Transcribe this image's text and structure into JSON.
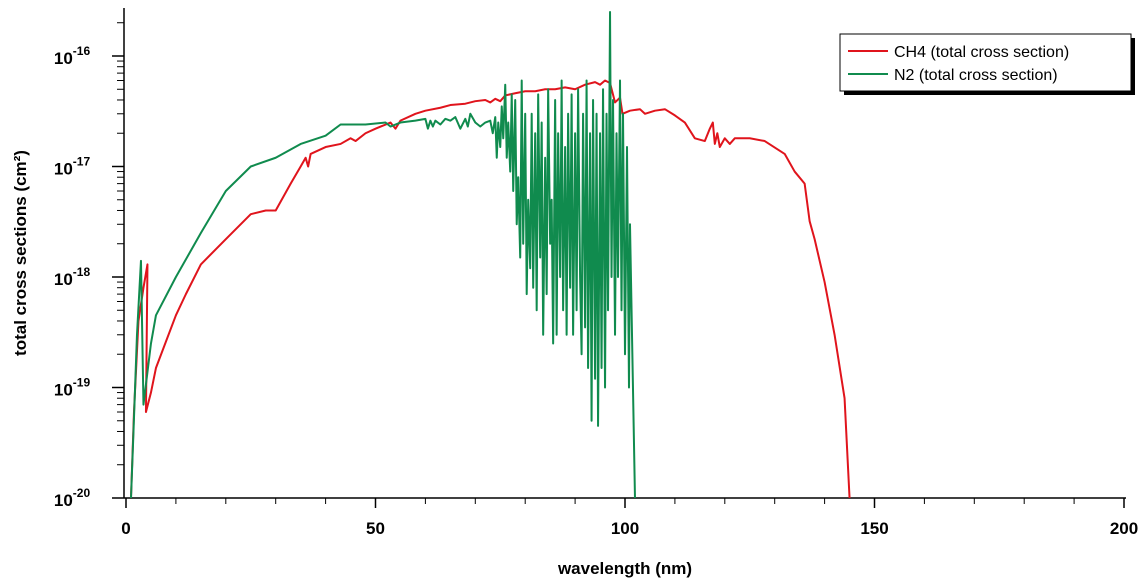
{
  "chart_data": {
    "type": "line",
    "xlabel": "wavelength (nm)",
    "ylabel": "total cross sections (cm²)",
    "xlim": [
      0,
      200
    ],
    "ylim": [
      1e-20,
      2.5e-16
    ],
    "yscale": "log",
    "x_ticks": [
      "0",
      "50",
      "100",
      "150",
      "200"
    ],
    "y_ticks": [
      {
        "base": "10",
        "exp": "-20",
        "value": 1e-20
      },
      {
        "base": "10",
        "exp": "-19",
        "value": 1e-19
      },
      {
        "base": "10",
        "exp": "-18",
        "value": 1e-18
      },
      {
        "base": "10",
        "exp": "-17",
        "value": 1e-17
      },
      {
        "base": "10",
        "exp": "-16",
        "value": 1e-16
      }
    ],
    "grid": false,
    "legend_position": "top-right",
    "series": [
      {
        "name": "CH4 (total cross section)",
        "color": "#e0141c",
        "points": [
          [
            1.0,
            1e-20
          ],
          [
            1.6,
            6e-20
          ],
          [
            2.5,
            4e-19
          ],
          [
            3.5,
            8e-19
          ],
          [
            4.3,
            1.3e-18
          ],
          [
            4.0,
            6e-20
          ],
          [
            5.0,
            9e-20
          ],
          [
            6.0,
            1.5e-19
          ],
          [
            8.0,
            2.6e-19
          ],
          [
            10.0,
            4.5e-19
          ],
          [
            12.0,
            7e-19
          ],
          [
            15.0,
            1.3e-18
          ],
          [
            20.0,
            2.2e-18
          ],
          [
            25.0,
            3.7e-18
          ],
          [
            28.0,
            4e-18
          ],
          [
            30.0,
            4e-18
          ],
          [
            33.0,
            7e-18
          ],
          [
            35.0,
            1e-17
          ],
          [
            36.0,
            1.2e-17
          ],
          [
            36.5,
            1e-17
          ],
          [
            37.0,
            1.3e-17
          ],
          [
            40.0,
            1.5e-17
          ],
          [
            43.0,
            1.6e-17
          ],
          [
            45.0,
            1.8e-17
          ],
          [
            46.0,
            1.7e-17
          ],
          [
            48.0,
            2e-17
          ],
          [
            50.0,
            2.2e-17
          ],
          [
            53.0,
            2.5e-17
          ],
          [
            54.0,
            2.2e-17
          ],
          [
            55.0,
            2.6e-17
          ],
          [
            58.0,
            3e-17
          ],
          [
            60.0,
            3.2e-17
          ],
          [
            63.0,
            3.4e-17
          ],
          [
            65.0,
            3.6e-17
          ],
          [
            68.0,
            3.7e-17
          ],
          [
            70.0,
            3.9e-17
          ],
          [
            72.0,
            4e-17
          ],
          [
            73.0,
            3.8e-17
          ],
          [
            74.0,
            4.1e-17
          ],
          [
            75.0,
            3.9e-17
          ],
          [
            76.0,
            4.4e-17
          ],
          [
            78.0,
            4.6e-17
          ],
          [
            80.0,
            4.8e-17
          ],
          [
            82.0,
            4.8e-17
          ],
          [
            84.0,
            5e-17
          ],
          [
            86.0,
            5e-17
          ],
          [
            88.0,
            5.2e-17
          ],
          [
            90.0,
            5e-17
          ],
          [
            92.0,
            5.5e-17
          ],
          [
            94.0,
            5.8e-17
          ],
          [
            95.0,
            5.5e-17
          ],
          [
            96.0,
            6e-17
          ],
          [
            97.0,
            5.7e-17
          ],
          [
            98.0,
            3.8e-17
          ],
          [
            99.0,
            4.2e-17
          ],
          [
            99.5,
            3e-17
          ],
          [
            101.0,
            3.2e-17
          ],
          [
            103.0,
            3.3e-17
          ],
          [
            104.0,
            3e-17
          ],
          [
            106.0,
            3.2e-17
          ],
          [
            108.0,
            3.3e-17
          ],
          [
            110.0,
            2.9e-17
          ],
          [
            112.0,
            2.5e-17
          ],
          [
            114.0,
            1.8e-17
          ],
          [
            116.0,
            1.7e-17
          ],
          [
            117.0,
            2.2e-17
          ],
          [
            117.6,
            2.5e-17
          ],
          [
            118.0,
            1.6e-17
          ],
          [
            118.5,
            2e-17
          ],
          [
            119.0,
            1.5e-17
          ],
          [
            120.0,
            1.8e-17
          ],
          [
            121.0,
            1.6e-17
          ],
          [
            122.0,
            1.8e-17
          ],
          [
            125.0,
            1.8e-17
          ],
          [
            128.0,
            1.7e-17
          ],
          [
            132.0,
            1.3e-17
          ],
          [
            134.0,
            9e-18
          ],
          [
            136.0,
            7e-18
          ],
          [
            137.0,
            3.2e-18
          ],
          [
            138.0,
            2.2e-18
          ],
          [
            140.0,
            9e-19
          ],
          [
            142.0,
            3e-19
          ],
          [
            144.0,
            8e-20
          ],
          [
            145.0,
            1e-20
          ]
        ]
      },
      {
        "name": "N2 (total cross section)",
        "color": "#108b4e",
        "points": [
          [
            1.0,
            1e-20
          ],
          [
            1.5,
            4e-20
          ],
          [
            2.2,
            3e-19
          ],
          [
            3.0,
            1.4e-18
          ],
          [
            3.5,
            7e-20
          ],
          [
            5.0,
            2.5e-19
          ],
          [
            6.0,
            4.5e-19
          ],
          [
            10.0,
            1e-18
          ],
          [
            15.0,
            2.5e-18
          ],
          [
            20.0,
            6e-18
          ],
          [
            25.0,
            1e-17
          ],
          [
            30.0,
            1.2e-17
          ],
          [
            35.0,
            1.6e-17
          ],
          [
            40.0,
            1.9e-17
          ],
          [
            43.0,
            2.4e-17
          ],
          [
            48.0,
            2.4e-17
          ],
          [
            52.0,
            2.5e-17
          ],
          [
            53.0,
            2.3e-17
          ],
          [
            55.0,
            2.5e-17
          ],
          [
            58.0,
            2.6e-17
          ],
          [
            60.0,
            2.7e-17
          ],
          [
            60.5,
            2.2e-17
          ],
          [
            61.0,
            2.6e-17
          ],
          [
            61.5,
            2.3e-17
          ],
          [
            62.0,
            2.6e-17
          ],
          [
            63.0,
            2.4e-17
          ],
          [
            64.0,
            2.7e-17
          ],
          [
            65.0,
            2.6e-17
          ],
          [
            66.0,
            2.8e-17
          ],
          [
            67.0,
            2.2e-17
          ],
          [
            68.0,
            2.7e-17
          ],
          [
            68.5,
            2.3e-17
          ],
          [
            69.0,
            3e-17
          ],
          [
            70.0,
            2.5e-17
          ],
          [
            71.0,
            2.3e-17
          ],
          [
            72.0,
            2.5e-17
          ],
          [
            73.0,
            2.6e-17
          ],
          [
            73.5,
            2e-17
          ],
          [
            74.0,
            2.8e-17
          ],
          [
            74.3,
            1.2e-17
          ],
          [
            74.6,
            2.5e-17
          ],
          [
            75.0,
            1.5e-17
          ],
          [
            75.3,
            3.5e-17
          ],
          [
            75.6,
            1.8e-17
          ],
          [
            76.0,
            5.5e-17
          ],
          [
            76.3,
            1.2e-17
          ],
          [
            76.6,
            2.5e-17
          ],
          [
            77.0,
            9e-18
          ],
          [
            77.3,
            4.5e-17
          ],
          [
            77.6,
            6e-18
          ],
          [
            78.0,
            4e-17
          ],
          [
            78.3,
            3e-18
          ],
          [
            78.6,
            8e-18
          ],
          [
            79.0,
            1.5e-18
          ],
          [
            79.3,
            6e-17
          ],
          [
            79.6,
            2e-18
          ],
          [
            80.0,
            3e-17
          ],
          [
            80.3,
            7e-19
          ],
          [
            80.6,
            5e-18
          ],
          [
            81.0,
            1.2e-18
          ],
          [
            81.3,
            3e-17
          ],
          [
            81.6,
            8e-19
          ],
          [
            82.0,
            2e-17
          ],
          [
            82.3,
            5e-19
          ],
          [
            82.6,
            4.5e-17
          ],
          [
            83.0,
            1.5e-18
          ],
          [
            83.3,
            2.5e-17
          ],
          [
            83.6,
            3e-19
          ],
          [
            84.0,
            1.2e-17
          ],
          [
            84.3,
            7e-19
          ],
          [
            84.6,
            5e-17
          ],
          [
            85.0,
            2e-18
          ],
          [
            85.3,
            5e-18
          ],
          [
            85.6,
            2.5e-19
          ],
          [
            86.0,
            4e-17
          ],
          [
            86.3,
            3e-19
          ],
          [
            86.6,
            2e-17
          ],
          [
            87.0,
            1e-18
          ],
          [
            87.3,
            6e-17
          ],
          [
            87.6,
            5e-19
          ],
          [
            88.0,
            1.5e-17
          ],
          [
            88.3,
            3e-19
          ],
          [
            88.6,
            3e-17
          ],
          [
            89.0,
            8e-19
          ],
          [
            89.3,
            4.5e-17
          ],
          [
            89.6,
            3e-19
          ],
          [
            90.0,
            2e-17
          ],
          [
            90.3,
            5e-19
          ],
          [
            90.6,
            5e-17
          ],
          [
            91.0,
            1e-18
          ],
          [
            91.3,
            2e-19
          ],
          [
            91.6,
            3e-17
          ],
          [
            92.0,
            3.5e-19
          ],
          [
            92.3,
            6e-17
          ],
          [
            92.6,
            1.5e-19
          ],
          [
            93.0,
            2e-17
          ],
          [
            93.3,
            5e-20
          ],
          [
            93.6,
            4e-17
          ],
          [
            94.0,
            1.2e-19
          ],
          [
            94.3,
            3e-17
          ],
          [
            94.6,
            4.5e-20
          ],
          [
            95.0,
            2e-17
          ],
          [
            95.3,
            1.5e-19
          ],
          [
            95.6,
            5e-17
          ],
          [
            96.0,
            1e-19
          ],
          [
            96.3,
            3e-17
          ],
          [
            96.6,
            5e-19
          ],
          [
            97.0,
            2.5e-16
          ],
          [
            97.3,
            1e-18
          ],
          [
            97.6,
            4e-17
          ],
          [
            98.0,
            3e-19
          ],
          [
            98.3,
            2e-17
          ],
          [
            98.6,
            1e-18
          ],
          [
            99.0,
            6e-17
          ],
          [
            99.3,
            5e-19
          ],
          [
            99.6,
            3e-17
          ],
          [
            100.0,
            2e-19
          ],
          [
            100.4,
            1.5e-17
          ],
          [
            100.8,
            1e-19
          ],
          [
            101.0,
            3e-18
          ],
          [
            102.0,
            1e-20
          ]
        ]
      }
    ]
  }
}
